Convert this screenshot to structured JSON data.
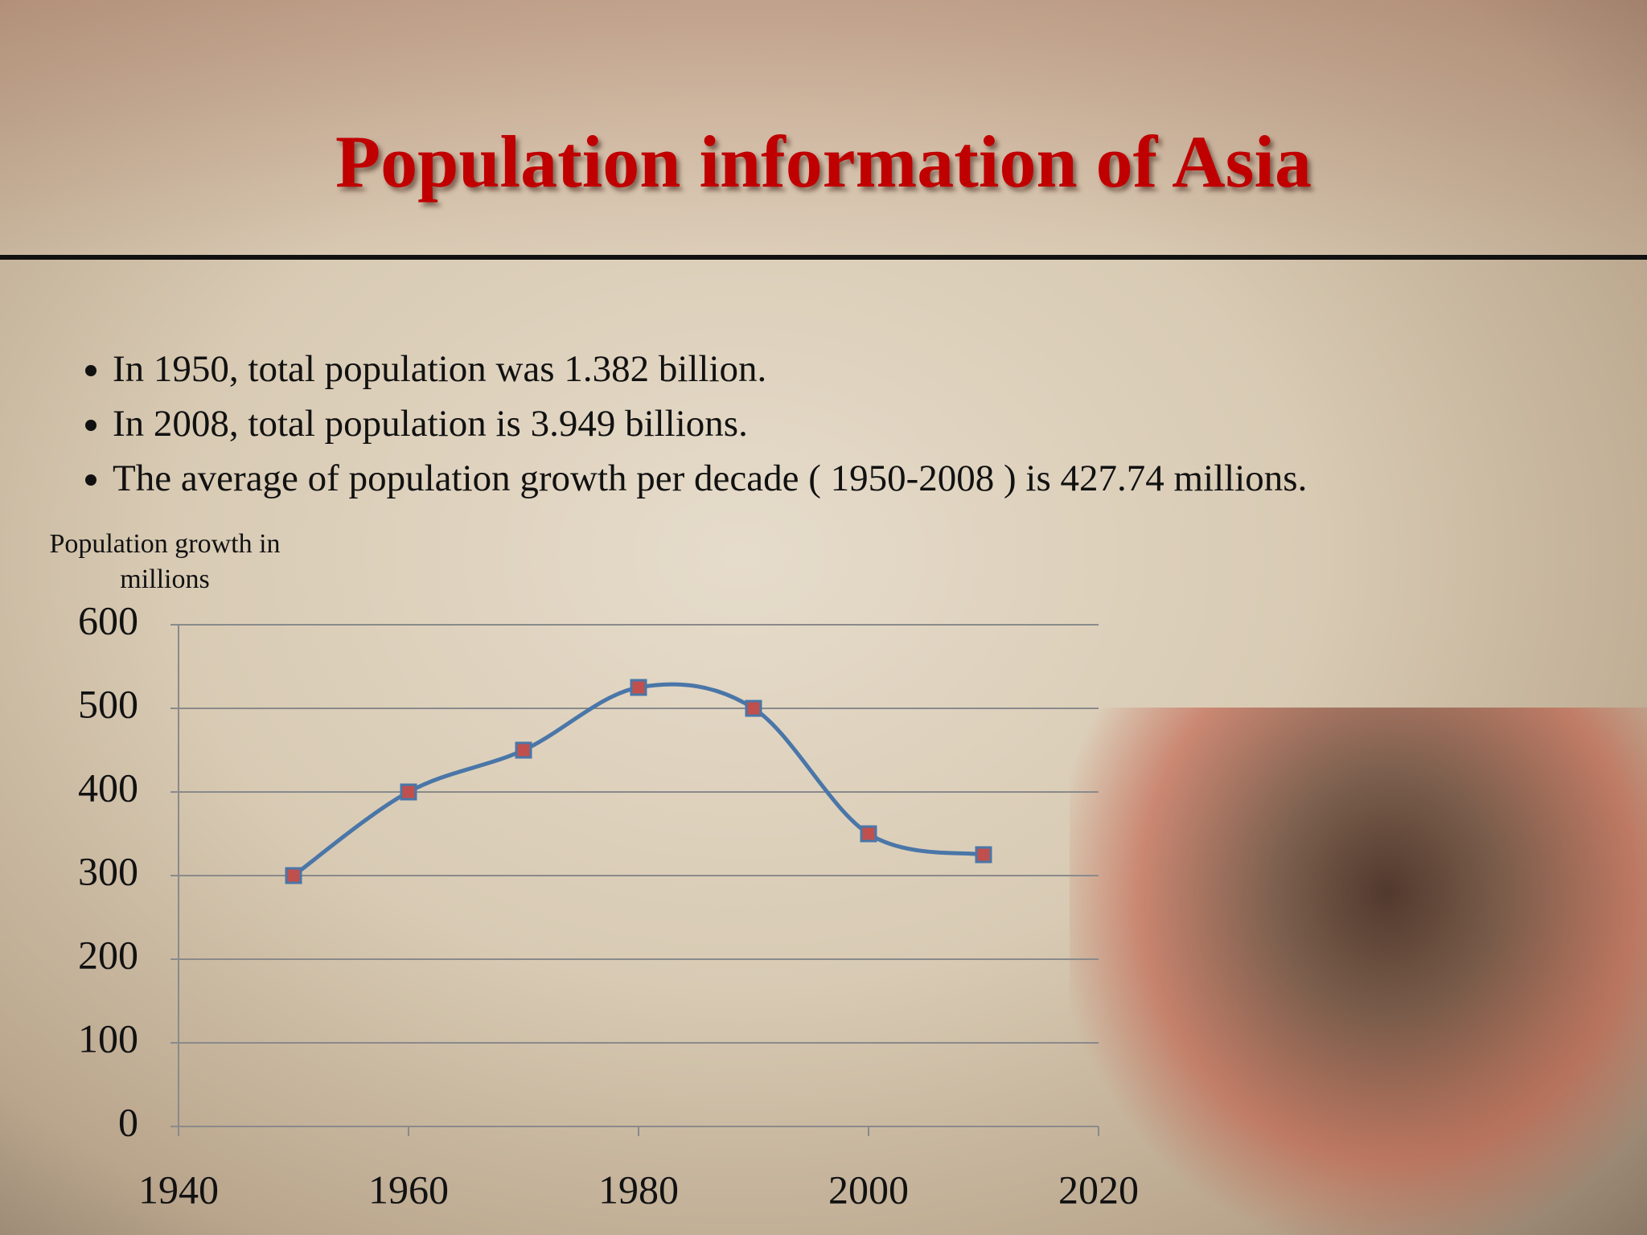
{
  "slide_title": "Population information of Asia",
  "bullets": [
    "In 1950, total population was 1.382 billion.",
    "In 2008, total population is 3.949 billions.",
    "The average of population growth per decade ( 1950-2008 ) is 427.74 millions."
  ],
  "chart_data": {
    "type": "line",
    "ylabel": "Population growth in millions",
    "x": [
      1950,
      1960,
      1970,
      1980,
      1990,
      2000,
      2010
    ],
    "series": [
      {
        "name": "Population growth",
        "color": "#4a76a8",
        "marker_color": "#c0504d",
        "values": [
          300,
          400,
          450,
          525,
          500,
          350,
          325
        ]
      }
    ],
    "xlim": [
      1940,
      2020
    ],
    "xticks": [
      1940,
      1960,
      1980,
      2000,
      2020
    ],
    "ylim": [
      0,
      600
    ],
    "yticks": [
      0,
      100,
      200,
      300,
      400,
      500,
      600
    ],
    "grid": true
  }
}
